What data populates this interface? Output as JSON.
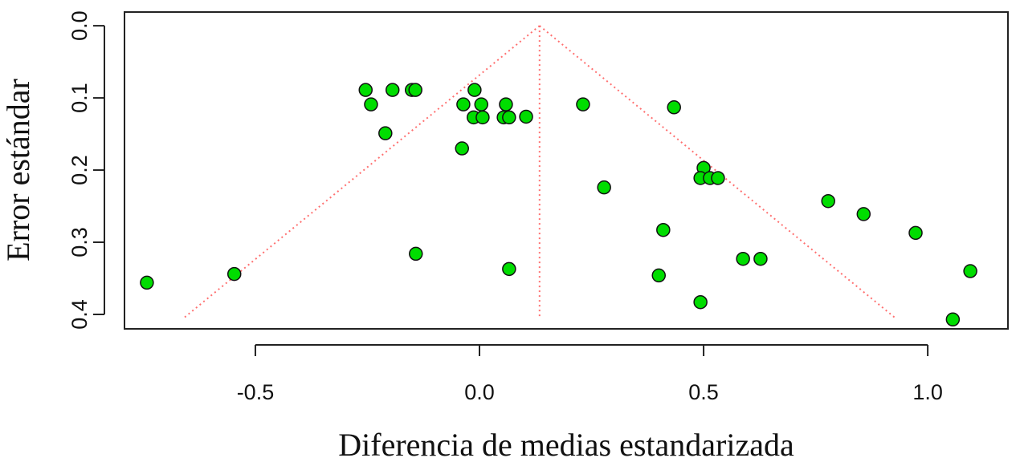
{
  "chart_data": {
    "type": "scatter",
    "xlabel": "Diferencia de medias estandarizada",
    "ylabel": "Error estándar",
    "x": [
      -0.742,
      -0.547,
      -0.254,
      -0.242,
      -0.194,
      -0.21,
      -0.151,
      -0.143,
      -0.142,
      -0.039,
      -0.036,
      -0.011,
      -0.013,
      0.004,
      0.007,
      0.059,
      0.054,
      0.066,
      0.066,
      0.104,
      0.231,
      0.278,
      0.434,
      0.41,
      0.4,
      0.493,
      0.5,
      0.493,
      0.514,
      0.532,
      0.588,
      0.627,
      0.778,
      0.857,
      0.973,
      1.056,
      1.095
    ],
    "series": [
      {
        "color": "#00dd00",
        "values": [
          0.356,
          0.344,
          0.089,
          0.109,
          0.089,
          0.149,
          0.089,
          0.089,
          0.316,
          0.17,
          0.109,
          0.089,
          0.127,
          0.109,
          0.127,
          0.109,
          0.127,
          0.127,
          0.337,
          0.126,
          0.109,
          0.224,
          0.113,
          0.283,
          0.346,
          0.383,
          0.197,
          0.211,
          0.211,
          0.211,
          0.323,
          0.323,
          0.243,
          0.261,
          0.287,
          0.407,
          0.34
        ]
      }
    ],
    "funnel": {
      "center": 0.134,
      "se_max": 0.405,
      "z": 1.96,
      "color": "#ff7070"
    },
    "xlim": [
      -0.792,
      1.179
    ],
    "ylim": [
      0.42,
      -0.019
    ],
    "xticks": [
      {
        "value": -0.5,
        "label": "-0.5"
      },
      {
        "value": 0,
        "label": "0.0"
      },
      {
        "value": 0.5,
        "label": "0.5"
      },
      {
        "value": 1,
        "label": "1.0"
      }
    ],
    "yticks": [
      {
        "value": 0,
        "label": "0.0"
      },
      {
        "value": 0.1,
        "label": "0.1"
      },
      {
        "value": 0.2,
        "label": "0.2"
      },
      {
        "value": 0.3,
        "label": "0.3"
      },
      {
        "value": 0.4,
        "label": "0.4"
      }
    ]
  }
}
